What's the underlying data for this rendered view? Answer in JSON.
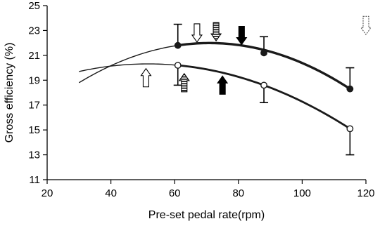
{
  "chart_data": {
    "type": "line",
    "title": "",
    "xlabel": "Pre-set pedal rate(rpm)",
    "ylabel": "Gross efficiency (%)",
    "xlim": [
      20,
      120
    ],
    "ylim": [
      11,
      25
    ],
    "xticks": [
      20,
      40,
      60,
      80,
      100,
      120
    ],
    "yticks": [
      11,
      13,
      15,
      17,
      19,
      21,
      23,
      25
    ],
    "grid": false,
    "legend": "none",
    "series": [
      {
        "marker": "filled-circle",
        "points": [
          {
            "x": 61,
            "y": 21.8,
            "err": 1.7
          },
          {
            "x": 88,
            "y": 21.2,
            "err": 1.3
          },
          {
            "x": 115,
            "y": 18.3,
            "err": 1.7
          }
        ],
        "fit": {
          "type": "quadratic",
          "x_range": [
            30,
            115
          ],
          "y_at_start": 18.8
        }
      },
      {
        "marker": "open-circle",
        "points": [
          {
            "x": 61,
            "y": 20.2,
            "err": 1.6
          },
          {
            "x": 88,
            "y": 18.6,
            "err": 1.4
          },
          {
            "x": 115,
            "y": 15.1,
            "err": 2.1
          }
        ],
        "fit": {
          "type": "quadratic",
          "x_range": [
            30,
            115
          ],
          "y_at_start": 19.7
        }
      }
    ],
    "annotations": [
      {
        "style": "open-arrow-down",
        "x": 67,
        "y": 22.8
      },
      {
        "style": "striped-arrow-down",
        "x": 73,
        "y": 22.9
      },
      {
        "style": "solid-arrow-down",
        "x": 81,
        "y": 22.6
      },
      {
        "style": "open-arrow-up",
        "x": 51,
        "y": 19.2
      },
      {
        "style": "striped-arrow-up",
        "x": 63,
        "y": 18.8
      },
      {
        "style": "solid-arrow-up",
        "x": 75,
        "y": 18.6
      },
      {
        "style": "dotted-arrow-down",
        "x": 120,
        "y": 23.4
      }
    ],
    "colors": {
      "line": "#1a1a1a",
      "axis": "#000000"
    }
  }
}
